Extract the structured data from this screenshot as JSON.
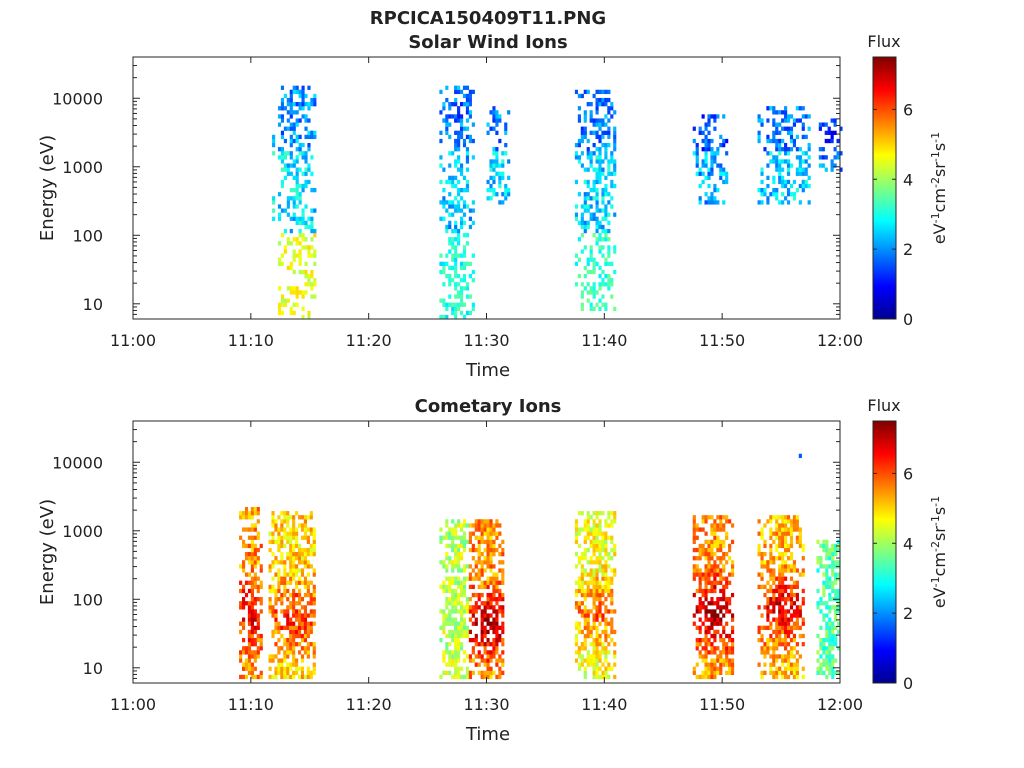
{
  "figure": {
    "title": "RPCICA150409T11.PNG"
  },
  "chart_data": [
    {
      "type": "heatmap",
      "title": "Solar Wind Ions",
      "xlabel": "Time",
      "ylabel": "Energy (eV)",
      "xticks": [
        "11:00",
        "11:10",
        "11:20",
        "11:30",
        "11:40",
        "11:50",
        "12:00"
      ],
      "xlim": [
        "11:00",
        "12:00"
      ],
      "yscale": "log",
      "ylim": [
        6,
        40000
      ],
      "yticks": [
        10,
        100,
        1000,
        10000
      ],
      "ytick_labels": [
        "10",
        "100",
        "1000",
        "10000"
      ],
      "grid": false,
      "colorbar": {
        "title": "Flux",
        "range": [
          0,
          7.5
        ],
        "ticks": [
          "0",
          "2",
          "4",
          "6"
        ],
        "colormap": "jet"
      },
      "clusters": [
        {
          "t_start": 11.8,
          "t_end": 12.0,
          "e_min": 180,
          "e_max": 4000,
          "flux": 3.0
        },
        {
          "t_start": 12.3,
          "t_end": 15.4,
          "e_min": 6,
          "e_max": 14000,
          "flux": 2.6,
          "low_energy_flux": 4.5
        },
        {
          "t_start": 26.0,
          "t_end": 29.0,
          "e_min": 6,
          "e_max": 14000,
          "flux": 2.4,
          "low_energy_flux": 3.0
        },
        {
          "t_start": 30.0,
          "t_end": 31.8,
          "e_min": 300,
          "e_max": 7000,
          "flux": 2.5
        },
        {
          "t_start": 37.5,
          "t_end": 41.0,
          "e_min": 8,
          "e_max": 12000,
          "flux": 2.5,
          "low_energy_flux": 3.2
        },
        {
          "t_start": 47.5,
          "t_end": 50.5,
          "e_min": 300,
          "e_max": 5500,
          "flux": 2.2
        },
        {
          "t_start": 53.0,
          "t_end": 57.5,
          "e_min": 300,
          "e_max": 7000,
          "flux": 2.5
        },
        {
          "t_start": 58.2,
          "t_end": 60.0,
          "e_min": 850,
          "e_max": 5000,
          "flux": 1.8
        }
      ]
    },
    {
      "type": "heatmap",
      "title": "Cometary Ions",
      "xlabel": "Time",
      "ylabel": "Energy (eV)",
      "xticks": [
        "11:00",
        "11:10",
        "11:20",
        "11:30",
        "11:40",
        "11:50",
        "12:00"
      ],
      "xlim": [
        "11:00",
        "12:00"
      ],
      "yscale": "log",
      "ylim": [
        6,
        40000
      ],
      "yticks": [
        10,
        100,
        1000,
        10000
      ],
      "ytick_labels": [
        "10",
        "100",
        "1000",
        "10000"
      ],
      "grid": false,
      "colorbar": {
        "title": "Flux",
        "range": [
          0,
          7.5
        ],
        "ticks": [
          "0",
          "2",
          "4",
          "6"
        ],
        "colormap": "jet"
      },
      "clusters": [
        {
          "t_start": 9.0,
          "t_end": 11.0,
          "e_min": 7,
          "e_max": 2200,
          "flux": 5.5,
          "peak_flux": 6.8,
          "peak_e": 60
        },
        {
          "t_start": 11.5,
          "t_end": 15.5,
          "e_min": 7,
          "e_max": 1800,
          "flux": 5.0,
          "peak_flux": 6.5,
          "peak_e": 50
        },
        {
          "t_start": 26.0,
          "t_end": 28.5,
          "e_min": 7,
          "e_max": 1400,
          "flux": 4.2
        },
        {
          "t_start": 28.5,
          "t_end": 31.5,
          "e_min": 7,
          "e_max": 1300,
          "flux": 5.5,
          "peak_flux": 7.3,
          "peak_e": 40
        },
        {
          "t_start": 37.5,
          "t_end": 41.0,
          "e_min": 7,
          "e_max": 1700,
          "flux": 4.6,
          "peak_flux": 6.0,
          "peak_e": 60
        },
        {
          "t_start": 47.5,
          "t_end": 51.0,
          "e_min": 7,
          "e_max": 1500,
          "flux": 5.5,
          "peak_flux": 7.5,
          "peak_e": 60
        },
        {
          "t_start": 53.0,
          "t_end": 57.0,
          "e_min": 7,
          "e_max": 1600,
          "flux": 5.2,
          "peak_flux": 7.0,
          "peak_e": 70
        },
        {
          "t_start": 58.0,
          "t_end": 60.0,
          "e_min": 7,
          "e_max": 700,
          "flux": 3.5
        },
        {
          "t_start": 56.5,
          "t_end": 56.7,
          "e_min": 11000,
          "e_max": 12500,
          "flux": 1.8
        }
      ]
    }
  ]
}
